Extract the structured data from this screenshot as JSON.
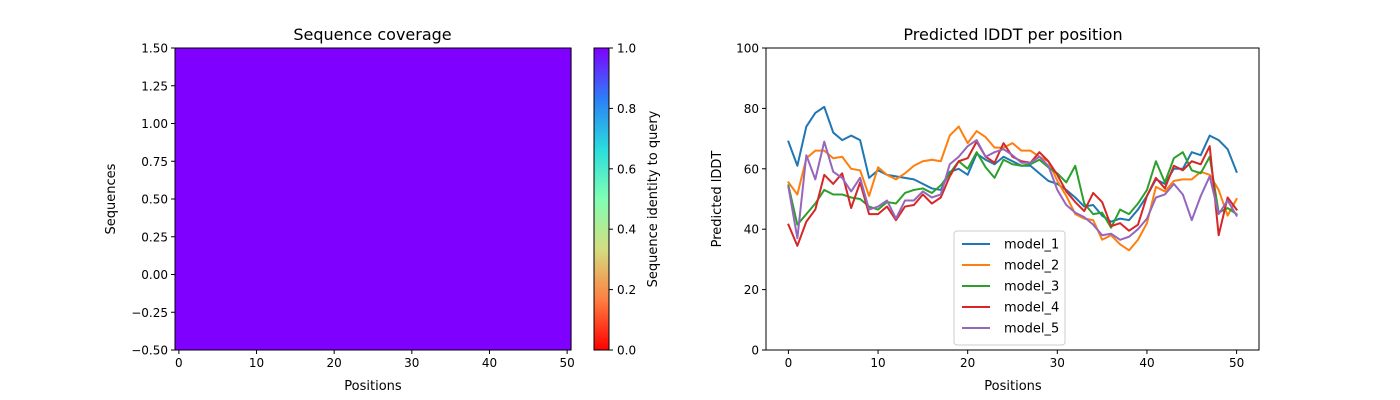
{
  "chart_data": [
    {
      "type": "heatmap",
      "title": "Sequence coverage",
      "xlabel": "Positions",
      "ylabel": "Sequences",
      "xlim": [
        -0.5,
        50.5
      ],
      "ylim": [
        -0.5,
        1.5
      ],
      "x_ticks": [
        0,
        10,
        20,
        30,
        40,
        50
      ],
      "y_ticks": [
        1.5,
        1.25,
        1.0,
        0.75,
        0.5,
        0.25,
        0.0,
        -0.25,
        -0.5
      ],
      "y_tick_labels": [
        "1.50",
        "1.25",
        "1.00",
        "0.75",
        "0.50",
        "0.25",
        "0.00",
        "−0.25",
        "−0.50"
      ],
      "rows": 1,
      "positions": 51,
      "values": [
        [
          1,
          1,
          1,
          1,
          1,
          1,
          1,
          1,
          1,
          1,
          1,
          1,
          1,
          1,
          1,
          1,
          1,
          1,
          1,
          1,
          1,
          1,
          1,
          1,
          1,
          1,
          1,
          1,
          1,
          1,
          1,
          1,
          1,
          1,
          1,
          1,
          1,
          1,
          1,
          1,
          1,
          1,
          1,
          1,
          1,
          1,
          1,
          1,
          1,
          1,
          1
        ]
      ],
      "colormap": "rainbow_r",
      "cell_color": "#8000ff",
      "colorbar": {
        "label": "Sequence identity to query",
        "range": [
          0.0,
          1.0
        ],
        "ticks": [
          0.0,
          0.2,
          0.4,
          0.6,
          0.8,
          1.0
        ],
        "tick_labels": [
          "0.0",
          "0.2",
          "0.4",
          "0.6",
          "0.8",
          "1.0"
        ],
        "stops": [
          "#ff0000",
          "#ff7f41",
          "#d4dd80",
          "#80ffb4",
          "#2adcdd",
          "#2c7ef7",
          "#8000ff"
        ]
      }
    },
    {
      "type": "line",
      "title": "Predicted lDDT per position",
      "xlabel": "Positions",
      "ylabel": "Predicted lDDT",
      "xlim": [
        -2.5,
        52.5
      ],
      "ylim": [
        0,
        100
      ],
      "x_ticks": [
        0,
        10,
        20,
        30,
        40,
        50
      ],
      "y_ticks": [
        0,
        20,
        40,
        60,
        80,
        100
      ],
      "grid": false,
      "legend_position": "lower-center",
      "x": [
        0,
        1,
        2,
        3,
        4,
        5,
        6,
        7,
        8,
        9,
        10,
        11,
        12,
        13,
        14,
        15,
        16,
        17,
        18,
        19,
        20,
        21,
        22,
        23,
        24,
        25,
        26,
        27,
        28,
        29,
        30,
        31,
        32,
        33,
        34,
        35,
        36,
        37,
        38,
        39,
        40,
        41,
        42,
        43,
        44,
        45,
        46,
        47,
        48,
        49,
        50
      ],
      "series": [
        {
          "name": "model_1",
          "color": "#1f77b4",
          "values": [
            69,
            61,
            74,
            78.5,
            80.5,
            72,
            69.5,
            71,
            69.5,
            57,
            59.5,
            58,
            57.5,
            57,
            56.5,
            55,
            53.5,
            53,
            59,
            60,
            58,
            65,
            63,
            61.5,
            64,
            62.5,
            61,
            61,
            58.5,
            56,
            55,
            53,
            50.5,
            47.5,
            48,
            44.5,
            42.5,
            43.5,
            43,
            46.5,
            51,
            56.5,
            55,
            60,
            60,
            65.5,
            64.5,
            71,
            69.5,
            66.5,
            59
          ]
        },
        {
          "name": "model_2",
          "color": "#ff7f0e",
          "values": [
            55.5,
            51.5,
            63.5,
            66,
            66,
            63.5,
            64,
            60,
            59.5,
            51,
            60.5,
            58,
            56.5,
            58.5,
            61,
            62.5,
            63,
            62.5,
            71,
            74,
            68.5,
            72.5,
            70.5,
            67,
            67,
            68.5,
            66,
            66,
            64,
            62.5,
            56,
            51,
            45,
            43.5,
            43,
            36.5,
            38,
            35,
            33,
            36.5,
            42,
            54,
            52.5,
            56,
            56.5,
            56.5,
            59,
            58,
            53,
            44.5,
            50
          ]
        },
        {
          "name": "model_3",
          "color": "#2ca02c",
          "values": [
            54.5,
            41.5,
            45,
            48.5,
            53,
            51.5,
            51.5,
            50.5,
            50,
            47.5,
            46.5,
            49,
            48.5,
            52,
            53,
            53.5,
            52,
            54.5,
            58.5,
            62.5,
            60,
            65.5,
            60.5,
            57,
            63,
            61.5,
            61,
            61.5,
            63,
            60.5,
            58.5,
            55.5,
            61,
            48.5,
            45,
            45.5,
            40.5,
            46.5,
            45,
            48.5,
            53,
            62.5,
            55.5,
            63.5,
            65.5,
            59.5,
            58.5,
            64,
            45.5,
            47,
            45
          ]
        },
        {
          "name": "model_4",
          "color": "#d62728",
          "values": [
            41.5,
            34.5,
            42.5,
            46.5,
            58,
            55,
            58.5,
            47,
            55.5,
            45,
            45,
            47.5,
            43,
            47.5,
            48,
            51.5,
            48.5,
            50.5,
            57.5,
            62.5,
            63.5,
            69,
            64,
            62,
            68.5,
            64,
            62.5,
            62,
            65.5,
            62.5,
            58,
            52.5,
            49,
            46,
            52,
            49,
            41,
            42,
            39.5,
            41.5,
            51,
            57,
            53.5,
            61,
            59.5,
            62.5,
            61.5,
            67.5,
            38,
            50.5,
            46.5
          ]
        },
        {
          "name": "model_5",
          "color": "#9467bd",
          "values": [
            54,
            37,
            64.5,
            56.5,
            69,
            59,
            57,
            52.5,
            57,
            46.5,
            47.5,
            49.5,
            43.5,
            49.5,
            49.5,
            52.5,
            50.5,
            51.5,
            61.5,
            64,
            67.5,
            69.5,
            64,
            65.5,
            66.5,
            64.5,
            62,
            62,
            64,
            61,
            53,
            48,
            45.5,
            44,
            41.5,
            38,
            38.5,
            36.5,
            37.5,
            40,
            43.5,
            50.5,
            51.5,
            55,
            51.5,
            43,
            51,
            57.5,
            45,
            49.5,
            44.5
          ]
        }
      ]
    }
  ]
}
